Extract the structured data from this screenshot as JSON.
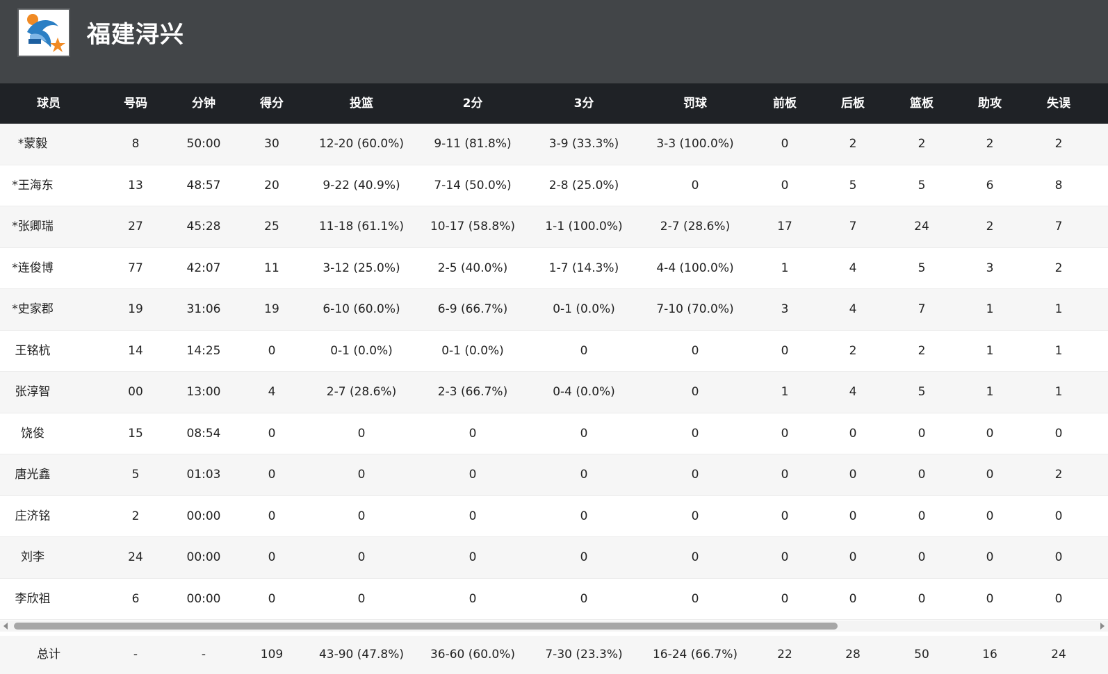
{
  "team": {
    "name": "福建浔兴",
    "logo_icon": "team-logo-dolphin-basketball"
  },
  "columns": [
    "球员",
    "号码",
    "分钟",
    "得分",
    "投篮",
    "2分",
    "3分",
    "罚球",
    "前板",
    "后板",
    "篮板",
    "助攻",
    "失误"
  ],
  "players": [
    [
      "*蒙毅",
      "8",
      "50:00",
      "30",
      "12-20 (60.0%)",
      "9-11 (81.8%)",
      "3-9 (33.3%)",
      "3-3 (100.0%)",
      "0",
      "2",
      "2",
      "2",
      "2"
    ],
    [
      "*王海东",
      "13",
      "48:57",
      "20",
      "9-22 (40.9%)",
      "7-14 (50.0%)",
      "2-8 (25.0%)",
      "0",
      "0",
      "5",
      "5",
      "6",
      "8"
    ],
    [
      "*张卿瑞",
      "27",
      "45:28",
      "25",
      "11-18 (61.1%)",
      "10-17 (58.8%)",
      "1-1 (100.0%)",
      "2-7 (28.6%)",
      "17",
      "7",
      "24",
      "2",
      "7"
    ],
    [
      "*连俊博",
      "77",
      "42:07",
      "11",
      "3-12 (25.0%)",
      "2-5 (40.0%)",
      "1-7 (14.3%)",
      "4-4 (100.0%)",
      "1",
      "4",
      "5",
      "3",
      "2"
    ],
    [
      "*史家郡",
      "19",
      "31:06",
      "19",
      "6-10 (60.0%)",
      "6-9 (66.7%)",
      "0-1 (0.0%)",
      "7-10 (70.0%)",
      "3",
      "4",
      "7",
      "1",
      "1"
    ],
    [
      "王铭杭",
      "14",
      "14:25",
      "0",
      "0-1 (0.0%)",
      "0-1 (0.0%)",
      "0",
      "0",
      "0",
      "2",
      "2",
      "1",
      "1"
    ],
    [
      "张淳智",
      "00",
      "13:00",
      "4",
      "2-7 (28.6%)",
      "2-3 (66.7%)",
      "0-4 (0.0%)",
      "0",
      "1",
      "4",
      "5",
      "1",
      "1"
    ],
    [
      "饶俊",
      "15",
      "08:54",
      "0",
      "0",
      "0",
      "0",
      "0",
      "0",
      "0",
      "0",
      "0",
      "0"
    ],
    [
      "唐光鑫",
      "5",
      "01:03",
      "0",
      "0",
      "0",
      "0",
      "0",
      "0",
      "0",
      "0",
      "0",
      "2"
    ],
    [
      "庄济铭",
      "2",
      "00:00",
      "0",
      "0",
      "0",
      "0",
      "0",
      "0",
      "0",
      "0",
      "0",
      "0"
    ],
    [
      "刘李",
      "24",
      "00:00",
      "0",
      "0",
      "0",
      "0",
      "0",
      "0",
      "0",
      "0",
      "0",
      "0"
    ],
    [
      "李欣祖",
      "6",
      "00:00",
      "0",
      "0",
      "0",
      "0",
      "0",
      "0",
      "0",
      "0",
      "0",
      "0"
    ]
  ],
  "totals": [
    "总计",
    "-",
    "-",
    "109",
    "43-90 (47.8%)",
    "36-60 (60.0%)",
    "7-30 (23.3%)",
    "16-24 (66.7%)",
    "22",
    "28",
    "50",
    "16",
    "24"
  ],
  "colors": {
    "header_bg": "#424548",
    "table_header_bg": "#1f2226",
    "row_alt_bg": "#f6f6f6"
  }
}
